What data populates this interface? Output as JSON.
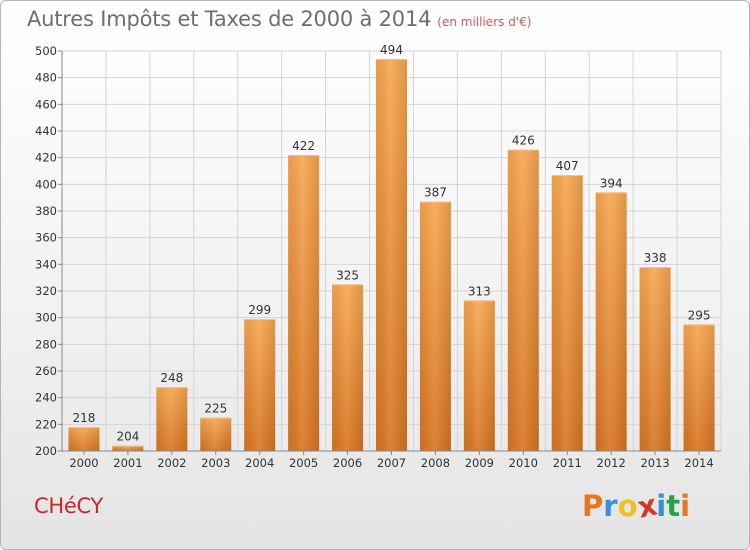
{
  "title": "Autres Impôts et Taxes de 2000 à 2014",
  "subtitle": "(en milliers d'€)",
  "commune": "CHéCY",
  "logo": {
    "letters": [
      "P",
      "r",
      "o",
      "x",
      "i",
      "t",
      "i"
    ],
    "colors": [
      "#e8761e",
      "#3a8fd8",
      "#f0c020",
      "#d8352a",
      "#3a8fd8",
      "#2aa04a",
      "#e8761e"
    ]
  },
  "colors": {
    "bar_top": "#f7a64f",
    "bar_bottom": "#d87420",
    "grid": "#d4d4d4",
    "axis": "#888888",
    "text": "#333333"
  },
  "chart_data": {
    "type": "bar",
    "title": "Autres Impôts et Taxes de 2000 à 2014",
    "subtitle": "(en milliers d'€)",
    "xlabel": "",
    "ylabel": "",
    "categories": [
      "2000",
      "2001",
      "2002",
      "2003",
      "2004",
      "2005",
      "2006",
      "2007",
      "2008",
      "2009",
      "2010",
      "2011",
      "2012",
      "2013",
      "2014"
    ],
    "values": [
      218,
      204,
      248,
      225,
      299,
      422,
      325,
      494,
      387,
      313,
      426,
      407,
      394,
      338,
      295
    ],
    "ylim": [
      200,
      500
    ],
    "yticks": [
      200,
      220,
      240,
      260,
      280,
      300,
      320,
      340,
      360,
      380,
      400,
      420,
      440,
      460,
      480,
      500
    ],
    "grid": true,
    "legend": "none"
  }
}
